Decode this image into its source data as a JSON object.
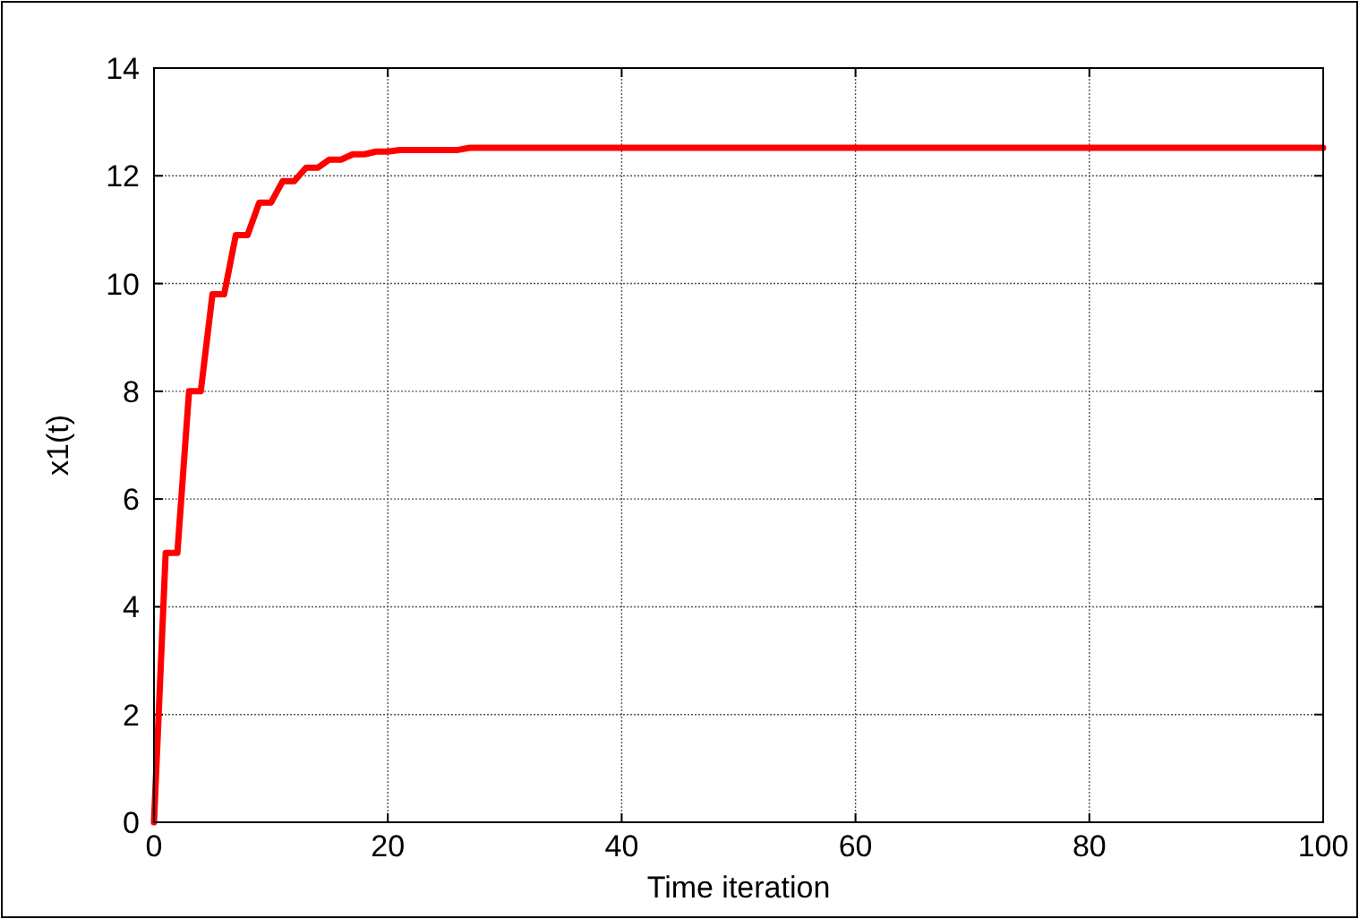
{
  "chart_data": {
    "type": "line",
    "xlabel": "Time iteration",
    "ylabel": "x1(t)",
    "xlim": [
      0,
      100
    ],
    "ylim": [
      0,
      14
    ],
    "xticks": [
      0,
      20,
      40,
      60,
      80,
      100
    ],
    "yticks": [
      0,
      2,
      4,
      6,
      8,
      10,
      12,
      14
    ],
    "grid": true,
    "marker": "none",
    "line_style": "solid",
    "series": [
      {
        "color": "#ff0000",
        "x": [
          0,
          1,
          2,
          3,
          4,
          5,
          6,
          7,
          8,
          9,
          10,
          11,
          12,
          13,
          14,
          15,
          16,
          17,
          18,
          19,
          20,
          21,
          26,
          27,
          100
        ],
        "values": [
          0,
          5,
          5,
          8,
          8,
          9.8,
          9.8,
          10.9,
          10.9,
          11.5,
          11.5,
          11.9,
          11.9,
          12.15,
          12.15,
          12.3,
          12.3,
          12.4,
          12.4,
          12.45,
          12.45,
          12.48,
          12.48,
          12.52,
          12.52
        ]
      }
    ]
  }
}
